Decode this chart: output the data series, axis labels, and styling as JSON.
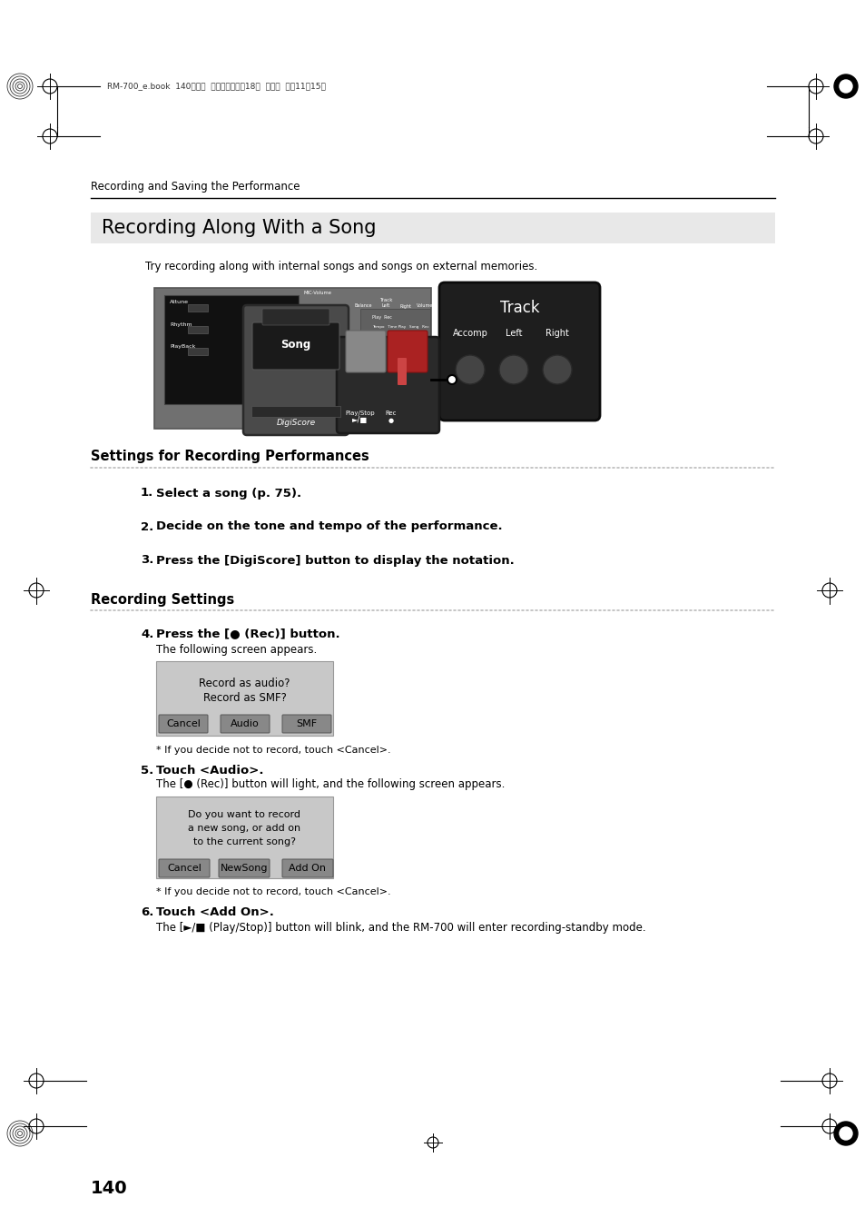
{
  "page_bg": "#ffffff",
  "header_text": "RM-700_e.book  140ページ  ２００９年３月18日  水曜日  午前11時15分",
  "section_label": "Recording and Saving the Performance",
  "title_text": "Recording Along With a Song",
  "subtitle": "Try recording along with internal songs and songs on external memories.",
  "settings_header": "Settings for Recording Performances",
  "step1": "Select a song (p. 75).",
  "step2": "Decide on the tone and tempo of the performance.",
  "step3": "Press the [DigiScore] button to display the notation.",
  "rec_settings_header": "Recording Settings",
  "step4_bold": "Press the [● (Rec)] button.",
  "step4_sub": "The following screen appears.",
  "screen1_line1": "Record as audio?",
  "screen1_line2": "Record as SMF?",
  "screen1_btn1": "Cancel",
  "screen1_btn2": "Audio",
  "screen1_btn3": "SMF",
  "note1": "* If you decide not to record, touch <Cancel>.",
  "step5_bold": "Touch <Audio>.",
  "step5_sub": "The [● (Rec)] button will light, and the following screen appears.",
  "screen2_line1": "Do you want to record",
  "screen2_line2": "a new song, or add on",
  "screen2_line3": "to the current song?",
  "screen2_btn1": "Cancel",
  "screen2_btn2": "NewSong",
  "screen2_btn3": "Add On",
  "note2": "* If you decide not to record, touch <Cancel>.",
  "step6_bold": "Touch <Add On>.",
  "step6_sub": "The [►/■ (Play/Stop)] button will blink, and the RM-700 will enter recording-standby mode.",
  "page_number": "140"
}
